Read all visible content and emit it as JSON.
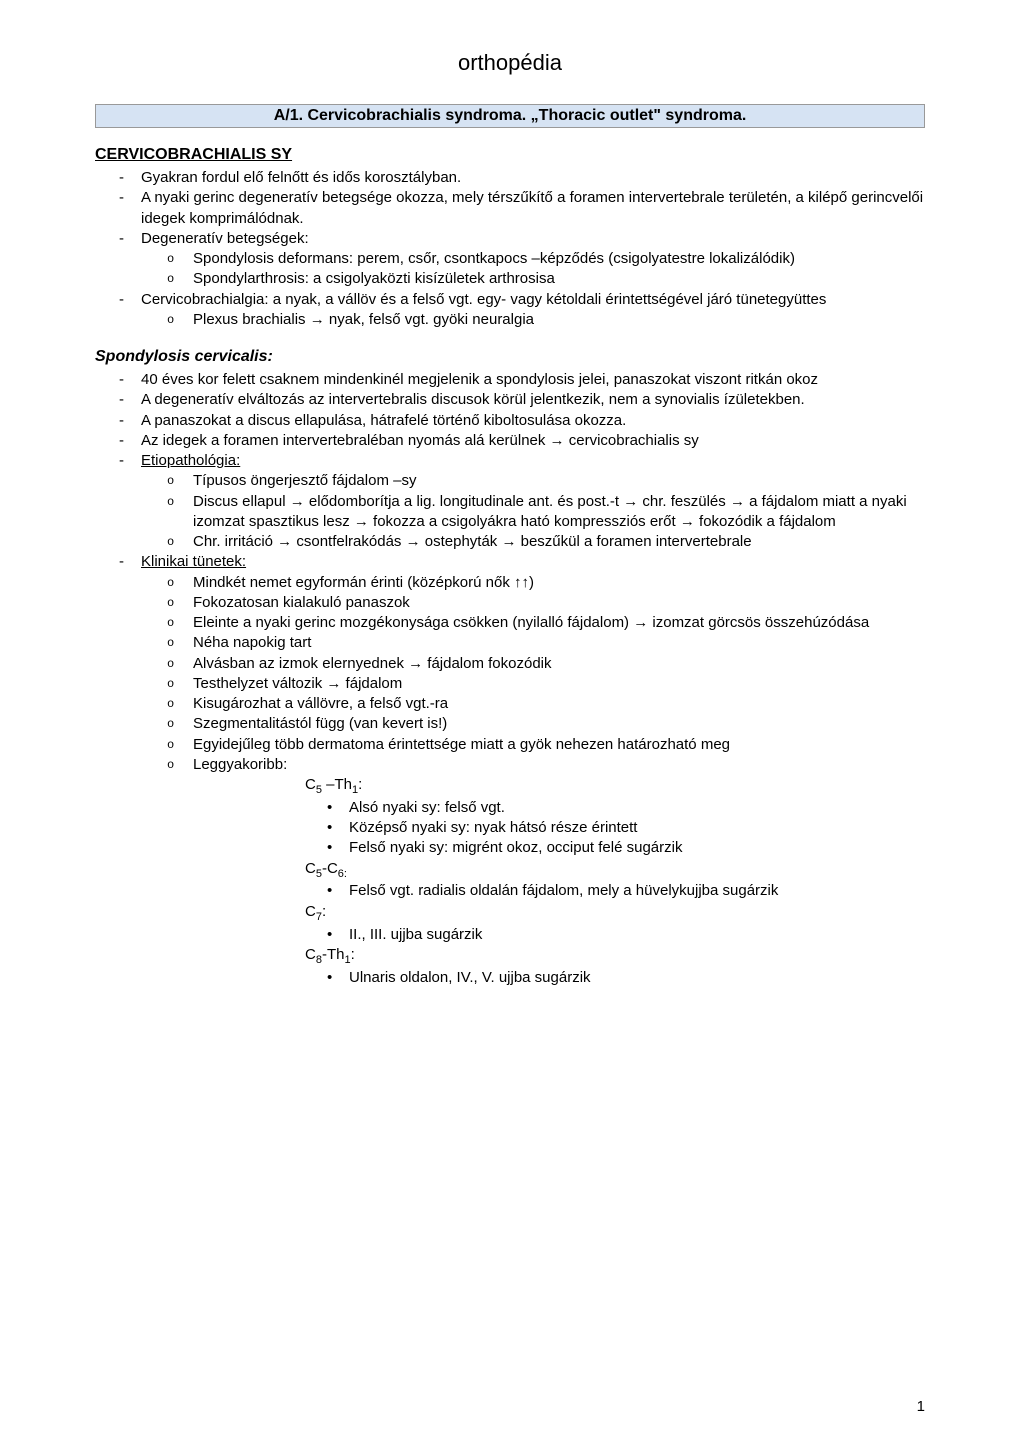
{
  "header": {
    "title": "orthopédia"
  },
  "section_title": "A/1. Cervicobrachialis syndroma. „Thoracic outlet\" syndroma.",
  "h2_1": "CERVICOBRACHIALIS SY",
  "list1": {
    "i1": "Gyakran fordul elő felnőtt és idős korosztályban.",
    "i2": "A nyaki gerinc degeneratív betegsége okozza, mely térszűkítő a foramen intervertebrale területén, a kilépő gerincvelői idegek komprimálódnak.",
    "i3": "Degeneratív betegségek:",
    "i3a": "Spondylosis deformans: perem, csőr, csontkapocs –képződés (csigolyatestre lokalizálódik)",
    "i3b": "Spondylarthrosis: a csigolyaközti kisízületek arthrosisa",
    "i4": "Cervicobrachialgia: a nyak, a vállöv és a felső vgt. egy- vagy kétoldali érintettségével járó tünetegyüttes",
    "i4a": "Plexus brachialis → nyak, felső vgt. gyöki neuralgia"
  },
  "h3_1": "Spondylosis cervicalis:",
  "list2": {
    "i1": "40 éves kor felett csaknem mindenkinél megjelenik a spondylosis jelei, panaszokat viszont ritkán okoz",
    "i2": "A degeneratív elváltozás az intervertebralis discusok körül jelentkezik, nem a synovialis ízületekben.",
    "i3": "A panaszokat a discus ellapulása, hátrafelé történő kiboltosulása okozza.",
    "i4": "Az idegek a foramen intervertebraléban nyomás alá kerülnek → cervicobrachialis sy",
    "i5": "Etiopathológia:",
    "i5a": "Típusos öngerjesztő fájdalom –sy",
    "i5b": "Discus ellapul → elődomborítja a lig. longitudinale ant. és post.-t → chr. feszülés → a fájdalom miatt a nyaki izomzat spasztikus lesz → fokozza a csigolyákra ható kompressziós erőt → fokozódik a fájdalom",
    "i5c": "Chr. irritáció → csontfelrakódás → ostephyták → beszűkül a foramen intervertebrale",
    "i6": "Klinikai tünetek:",
    "i6a": "Mindkét nemet egyformán érinti (középkorú nők ↑↑)",
    "i6b": "Fokozatosan kialakuló panaszok",
    "i6c": "Eleinte a nyaki gerinc mozgékonysága csökken (nyilalló fájdalom) → izomzat görcsös összehúzódása",
    "i6d": "Néha napokig tart",
    "i6e": "Alvásban az izmok elernyednek → fájdalom fokozódik",
    "i6f": "Testhelyzet változik → fájdalom",
    "i6g": "Kisugározhat a vállövre, a felső vgt.-ra",
    "i6h": "Szegmentalitástól függ (van kevert is!)",
    "i6i": "Egyidejűleg több dermatoma érintettsége miatt a gyök nehezen határozható meg",
    "i6j": "Leggyakoribb:",
    "seg1_label_pre": "C",
    "seg1_sub1": "5",
    "seg1_mid": " –Th",
    "seg1_sub2": "1",
    "seg1_post": ":",
    "seg1a": "Alsó nyaki sy: felső vgt.",
    "seg1b": "Középső nyaki sy: nyak hátsó része érintett",
    "seg1c": "Felső nyaki sy: migrént okoz, occiput felé sugárzik",
    "seg2_label_pre": "C",
    "seg2_sub1": "5",
    "seg2_mid": "-C",
    "seg2_sub2": "6:",
    "seg2a": "Felső vgt. radialis oldalán fájdalom, mely a hüvelykujjba sugárzik",
    "seg3_label_pre": "C",
    "seg3_sub1": "7",
    "seg3_post": ":",
    "seg3a": "II., III. ujjba sugárzik",
    "seg4_label_pre": "C",
    "seg4_sub1": "8",
    "seg4_mid": "-Th",
    "seg4_sub2": "1",
    "seg4_post": ":",
    "seg4a": "Ulnaris oldalon, IV., V. ujjba sugárzik"
  },
  "page_number": "1",
  "colors": {
    "section_bg": "#d6e3f3",
    "section_border": "#999999",
    "text": "#000000",
    "page_bg": "#ffffff"
  },
  "typography": {
    "body_font": "Arial",
    "header_size_pt": 17,
    "section_title_size_pt": 12,
    "body_size_pt": 11
  }
}
